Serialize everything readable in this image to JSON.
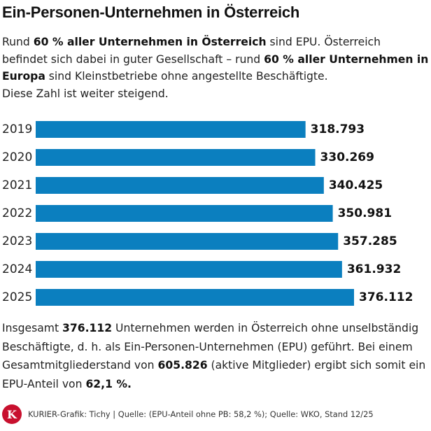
{
  "title": "Ein-Personen-Unternehmen in Österreich",
  "intro": {
    "s1": "Rund ",
    "b1": "60 % aller Unternehmen in Österreich",
    "s2": " sind EPU. Österreich befindet sich dabei in guter Gesellschaft – rund ",
    "b2": "60 % aller Unternehmen in Europa",
    "s3": " sind Kleinstbetriebe ohne angestellte Beschäftigte.",
    "s4": "Diese Zahl ist weiter steigend."
  },
  "summary": {
    "s1": "Insgesamt ",
    "b1": "376.112",
    "s2": " Unternehmen werden in Österreich ohne unselbständig Beschäftigte, d. h. als Ein-Personen-Unternehmen (EPU) geführt. Bei einem Gesamtmitgliederstand von ",
    "b2": "605.826",
    "s3": " (aktive Mitglieder) ergibt sich somit ein EPU-Anteil von ",
    "b3": "62,1 %."
  },
  "footer": {
    "logo_letter": "K",
    "credit": "KURIER-Grafik: Tichy  | Quelle: (EPU-Anteil ohne PB: 58,2 %); Quelle: WKO, Stand 12/25"
  },
  "colors": {
    "bar": "#0b7fbf",
    "logo": "#c8102e"
  },
  "chart_data": {
    "type": "bar",
    "orientation": "horizontal",
    "categories": [
      "2019",
      "2020",
      "2021",
      "2022",
      "2023",
      "2024",
      "2025"
    ],
    "values": [
      318793,
      330269,
      340425,
      350981,
      357285,
      361932,
      376112
    ],
    "value_labels": [
      "318.793",
      "330.269",
      "340.425",
      "350.981",
      "357.285",
      "361.932",
      "376.112"
    ],
    "xlim": [
      0,
      376112
    ],
    "grid": false,
    "legend": "none"
  }
}
